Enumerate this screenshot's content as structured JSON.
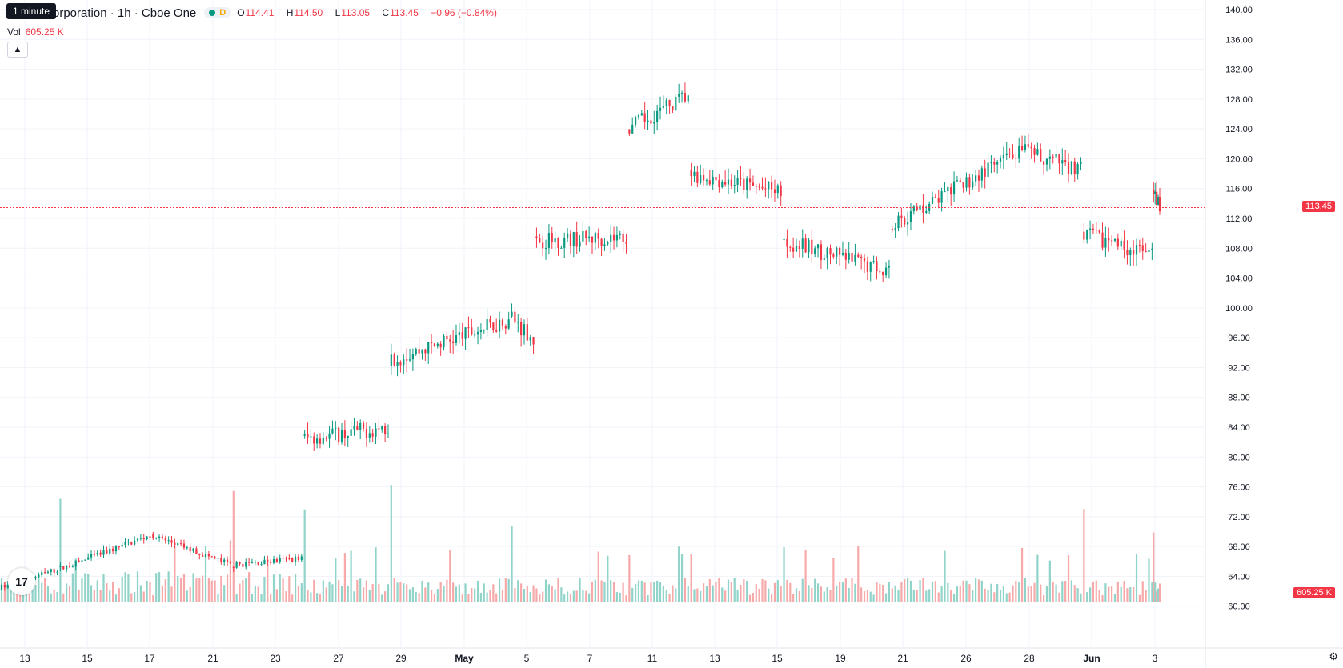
{
  "header": {
    "title": "orporation · 1h · Cboe One",
    "tooltip": "1 minute",
    "d_badge": "D",
    "ohlc": {
      "o_label": "O",
      "o": "114.41",
      "h_label": "H",
      "h": "114.50",
      "l_label": "L",
      "l": "113.05",
      "c_label": "C",
      "c": "113.45",
      "change": "−0.96 (−0.84%)"
    },
    "vol_label": "Vol",
    "vol_value": "605.25 K",
    "collapse_icon": "chevron-up-icon"
  },
  "colors": {
    "up": "#089981",
    "down": "#f23645",
    "up_vol": "#8fd3c9",
    "down_vol": "#f7a9a9",
    "grid": "#f0f3fa"
  },
  "price_badge": "113.45",
  "vol_badge": "605.25 K",
  "chart_data": {
    "type": "candlestick",
    "y_axis": {
      "ticks": [
        "140.00",
        "136.00",
        "132.00",
        "128.00",
        "124.00",
        "120.00",
        "116.00",
        "112.00",
        "108.00",
        "104.00",
        "100.00",
        "96.00",
        "92.00",
        "88.00",
        "84.00",
        "80.00",
        "76.00",
        "72.00",
        "68.00",
        "64.00",
        "60.00"
      ],
      "ylim": [
        56,
        140
      ]
    },
    "x_axis": {
      "ticks": [
        "13",
        "15",
        "17",
        "21",
        "23",
        "27",
        "29",
        "May",
        "5",
        "7",
        "11",
        "13",
        "15",
        "19",
        "21",
        "26",
        "28",
        "Jun",
        "3"
      ]
    },
    "last_price": 113.45,
    "segments": [
      {
        "start": 0,
        "end": 38,
        "from": 62.5,
        "to": 65.0,
        "vol": "low"
      },
      {
        "start": 38,
        "end": 97,
        "from": 65.0,
        "to": 69.5,
        "vol": "low"
      },
      {
        "start": 97,
        "end": 150,
        "from": 69.5,
        "to": 65.5,
        "vol": "low"
      },
      {
        "start": 150,
        "end": 196,
        "from": 65.5,
        "to": 66.5,
        "vol": "low"
      },
      {
        "start": 196,
        "end": 252,
        "from": 82.5,
        "to": 84.0,
        "vol": "mid"
      },
      {
        "start": 252,
        "end": 330,
        "from": 93.0,
        "to": 98.5,
        "vol": "mid"
      },
      {
        "start": 330,
        "end": 345,
        "from": 98.5,
        "to": 96.0,
        "vol": "mid"
      },
      {
        "start": 345,
        "end": 405,
        "from": 109.0,
        "to": 109.5,
        "vol": "mid"
      },
      {
        "start": 405,
        "end": 445,
        "from": 124.0,
        "to": 128.5,
        "vol": "mid"
      },
      {
        "start": 445,
        "end": 505,
        "from": 118.0,
        "to": 115.5,
        "vol": "mid"
      },
      {
        "start": 505,
        "end": 575,
        "from": 109.0,
        "to": 105.0,
        "vol": "mid"
      },
      {
        "start": 575,
        "end": 660,
        "from": 111.0,
        "to": 121.0,
        "vol": "mid"
      },
      {
        "start": 660,
        "end": 700,
        "from": 121.0,
        "to": 118.5,
        "vol": "mid"
      },
      {
        "start": 700,
        "end": 745,
        "from": 110.0,
        "to": 107.0,
        "vol": "mid"
      },
      {
        "start": 745,
        "end": 750,
        "from": 115.5,
        "to": 113.45,
        "vol": "high"
      }
    ]
  }
}
